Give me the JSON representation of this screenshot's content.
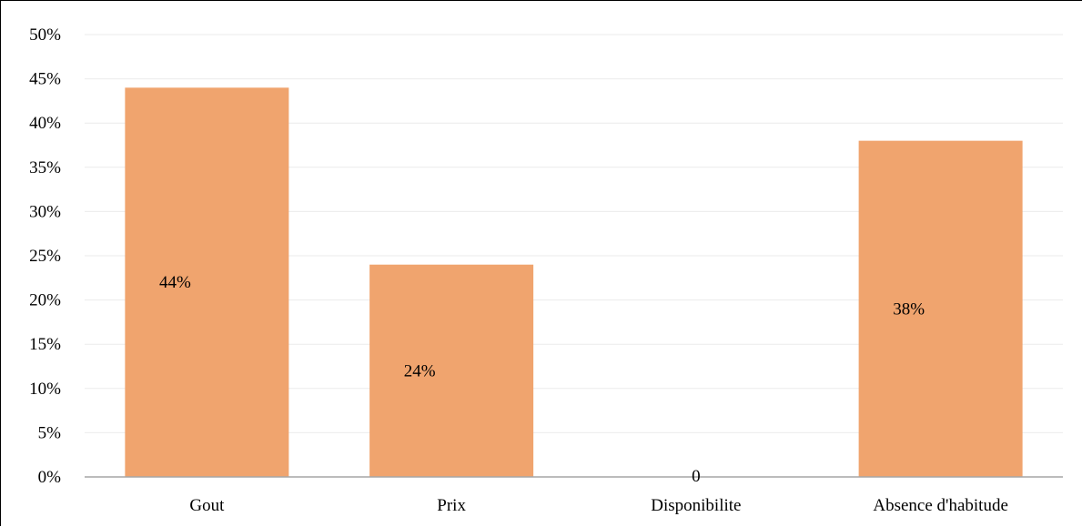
{
  "chart_data": {
    "type": "bar",
    "categories": [
      "Gout",
      "Prix",
      "Disponibilite",
      "Absence d'habitude"
    ],
    "values": [
      44,
      24,
      0,
      38
    ],
    "data_labels": [
      "44%",
      "24%",
      "0",
      "38%"
    ],
    "title": "",
    "xlabel": "",
    "ylabel": "",
    "ylim": [
      0,
      50
    ],
    "yticks": [
      "0%",
      "5%",
      "10%",
      "15%",
      "20%",
      "25%",
      "30%",
      "35%",
      "40%",
      "45%",
      "50%"
    ],
    "grid": true,
    "legend": "none",
    "bar_color": "#f0a46e",
    "grid_color": "#ebebeb",
    "axis_color": "#a6a6a6"
  }
}
